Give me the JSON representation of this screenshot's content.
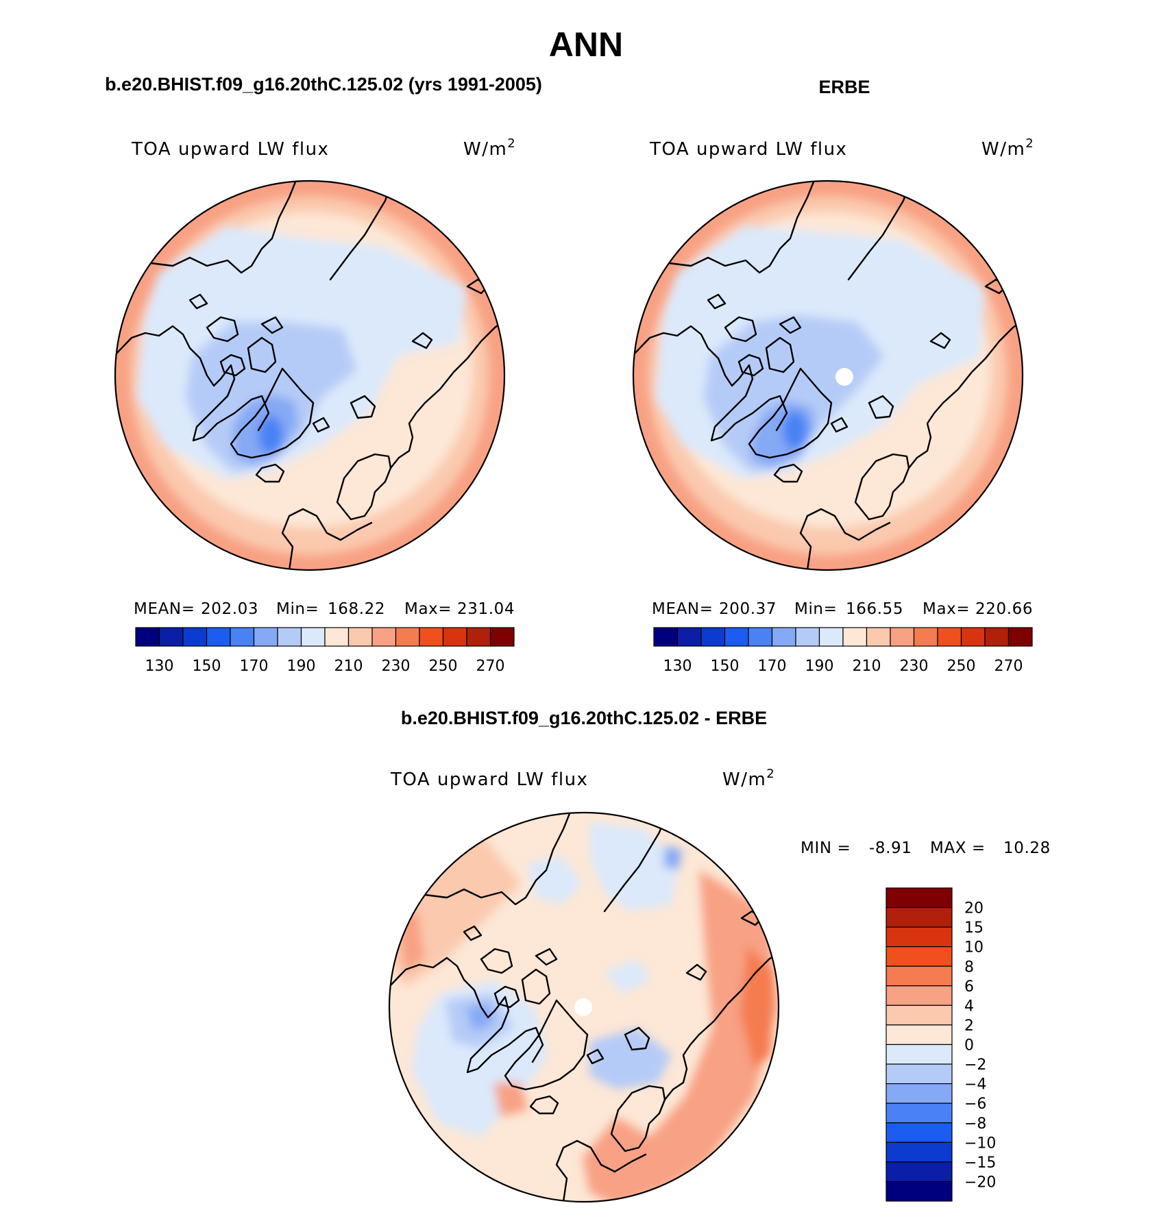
{
  "figure": {
    "title": "ANN",
    "left_title": "b.e20.BHIST.f09_g16.20thC.125.02 (yrs 1991-2005)",
    "right_title": "ERBE",
    "diff_title": "b.e20.BHIST.f09_g16.20thC.125.02 - ERBE"
  },
  "panels": [
    {
      "id": "model",
      "variable": "TOA upward LW flux",
      "units_base": "W/m",
      "units_exp": "2",
      "stats": {
        "mean_label": "MEAN=",
        "mean": "202.03",
        "min_label": "Min=",
        "min": "168.22",
        "max_label": "Max=",
        "max": "231.04"
      },
      "has_missing_pole": false
    },
    {
      "id": "obs",
      "variable": "TOA upward LW flux",
      "units_base": "W/m",
      "units_exp": "2",
      "stats": {
        "mean_label": "MEAN=",
        "mean": "200.37",
        "min_label": "Min=",
        "min": "166.55",
        "max_label": "Max=",
        "max": "220.66"
      },
      "has_missing_pole": true
    },
    {
      "id": "diff",
      "variable": "TOA upward LW flux",
      "units_base": "W/m",
      "units_exp": "2",
      "stats": {
        "min_label": "MIN =",
        "min": "-8.91",
        "max_label": "MAX =",
        "max": "10.28"
      },
      "has_missing_pole": true
    }
  ],
  "colorbars": {
    "abs": {
      "tick_labels": [
        "130",
        "150",
        "170",
        "190",
        "210",
        "230",
        "250",
        "270"
      ],
      "colors": [
        "#00007f",
        "#0a1ea8",
        "#0b3ccf",
        "#1c5cf0",
        "#4a82f5",
        "#86a9f5",
        "#b5cbf7",
        "#dbe9fb",
        "#fde7d6",
        "#fbc9ae",
        "#f8a184",
        "#f57b50",
        "#f04f1e",
        "#d83410",
        "#b0200a",
        "#7f0000"
      ]
    },
    "diff": {
      "tick_labels": [
        "20",
        "15",
        "10",
        "8",
        "6",
        "4",
        "2",
        "0",
        "-2",
        "-4",
        "-6",
        "-8",
        "-10",
        "-15",
        "-20"
      ],
      "colors": [
        "#7f0000",
        "#b0200a",
        "#d83410",
        "#f04f1e",
        "#f57b50",
        "#f8a184",
        "#fbc9ae",
        "#fde7d6",
        "#dbe9fb",
        "#b5cbf7",
        "#86a9f5",
        "#4a82f5",
        "#1c5cf0",
        "#0b3ccf",
        "#0a1ea8",
        "#00007f"
      ]
    }
  }
}
